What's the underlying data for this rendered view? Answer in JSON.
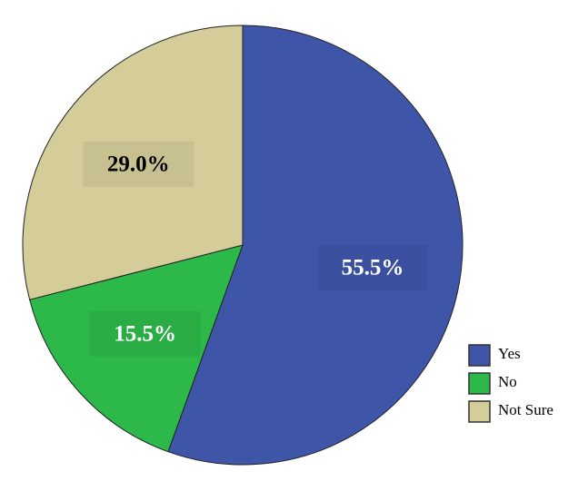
{
  "chart_data": {
    "type": "pie",
    "categories": [
      "Yes",
      "No",
      "Not Sure"
    ],
    "values": [
      55.5,
      15.5,
      29.0
    ],
    "value_labels": [
      "55.5%",
      "15.5%",
      "29.0%"
    ],
    "colors": [
      "#3f56a8",
      "#2db84a",
      "#d4cc99"
    ],
    "start_angle": 0,
    "direction": "clockwise",
    "legend": "lower right"
  }
}
